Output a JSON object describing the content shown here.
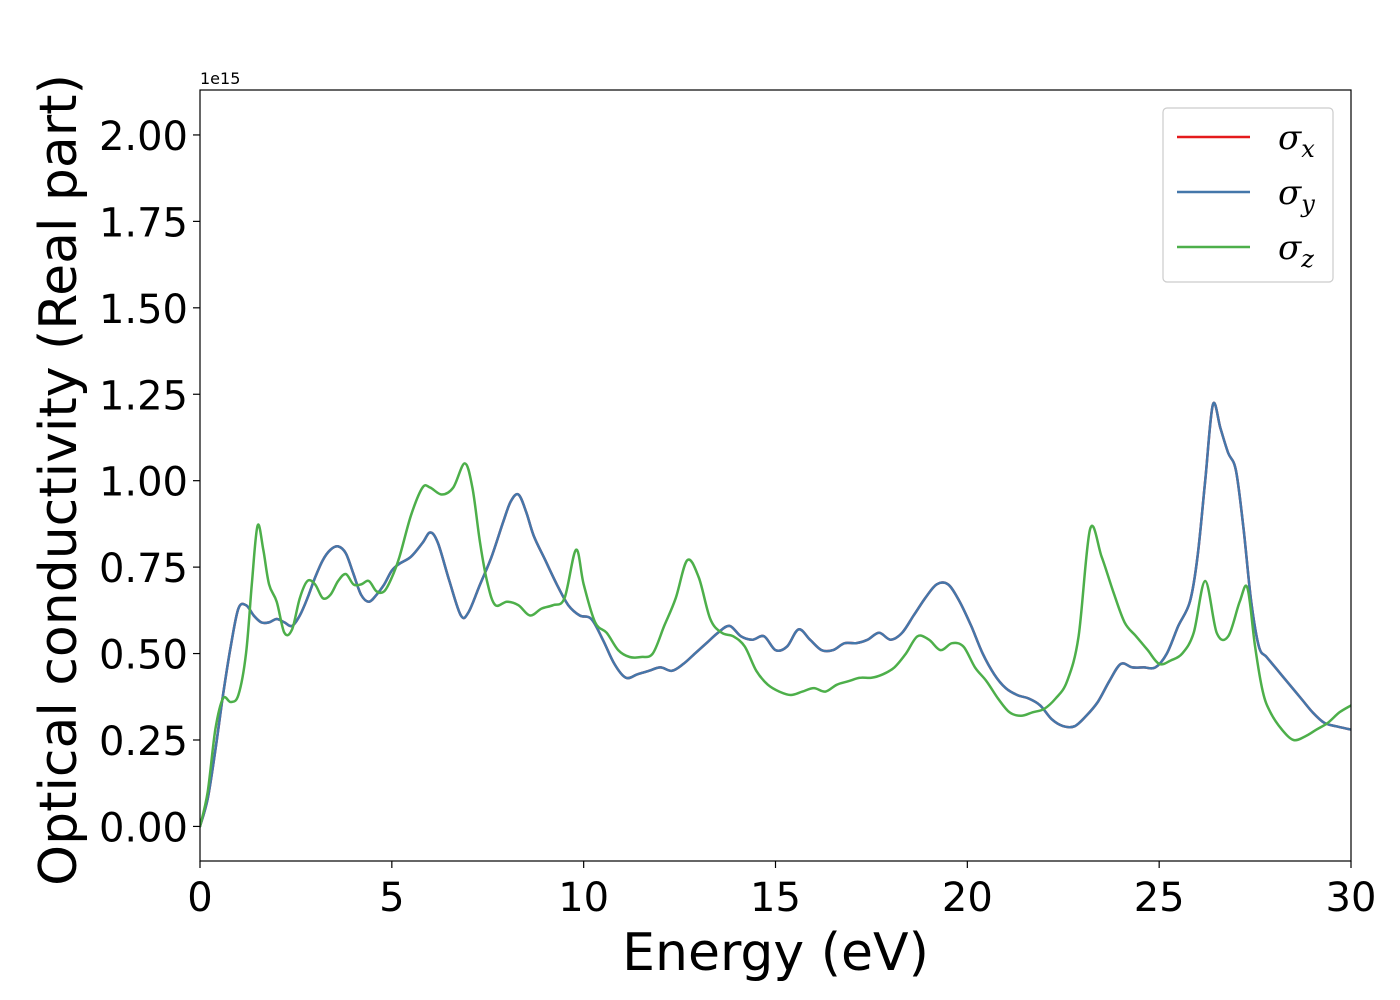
{
  "chart_data": {
    "type": "line",
    "xlabel": "Energy (eV)",
    "ylabel": "Optical conductivity (Real part)",
    "offset_text": "1e15",
    "xlim": [
      0,
      30
    ],
    "ylim": [
      -0.1,
      2.13
    ],
    "x_ticks": [
      0,
      5,
      10,
      15,
      20,
      25,
      30
    ],
    "x_tick_labels": [
      "0",
      "5",
      "10",
      "15",
      "20",
      "25",
      "30"
    ],
    "y_ticks": [
      0,
      0.25,
      0.5,
      0.75,
      1.0,
      1.25,
      1.5,
      1.75,
      2.0
    ],
    "y_tick_labels": [
      "0.00",
      "0.25",
      "0.50",
      "0.75",
      "1.00",
      "1.25",
      "1.50",
      "1.75",
      "2.00"
    ],
    "grid": false,
    "legend_position": "top-right",
    "series": [
      {
        "name": "σx",
        "symbol": "σ",
        "subscript": "x",
        "color": "#e41a1c",
        "x": [
          0,
          0.2,
          0.4,
          0.6,
          0.8,
          1.0,
          1.2,
          1.4,
          1.6,
          1.8,
          2.0,
          2.2,
          2.4,
          2.6,
          2.8,
          3.0,
          3.2,
          3.4,
          3.6,
          3.8,
          4.0,
          4.2,
          4.4,
          4.6,
          4.8,
          5.0,
          5.2,
          5.5,
          5.8,
          6.0,
          6.2,
          6.5,
          6.8,
          7.0,
          7.3,
          7.6,
          7.9,
          8.1,
          8.3,
          8.5,
          8.7,
          9.0,
          9.3,
          9.6,
          9.9,
          10.2,
          10.5,
          10.8,
          11.1,
          11.4,
          11.7,
          12.0,
          12.3,
          12.6,
          12.9,
          13.2,
          13.5,
          13.8,
          14.1,
          14.4,
          14.7,
          15.0,
          15.3,
          15.6,
          15.9,
          16.2,
          16.5,
          16.8,
          17.1,
          17.4,
          17.7,
          18.0,
          18.3,
          18.6,
          18.9,
          19.2,
          19.5,
          19.8,
          20.1,
          20.4,
          20.7,
          21.0,
          21.3,
          21.6,
          21.9,
          22.2,
          22.5,
          22.8,
          23.1,
          23.4,
          23.7,
          24.0,
          24.3,
          24.6,
          24.9,
          25.2,
          25.5,
          25.8,
          26.0,
          26.2,
          26.4,
          26.6,
          26.8,
          27.0,
          27.2,
          27.4,
          27.6,
          27.8,
          28.1,
          28.4,
          28.7,
          29.0,
          29.3,
          29.6,
          30.0
        ],
        "y": [
          0.0,
          0.08,
          0.22,
          0.38,
          0.52,
          0.63,
          0.64,
          0.61,
          0.59,
          0.59,
          0.6,
          0.59,
          0.58,
          0.61,
          0.66,
          0.72,
          0.77,
          0.8,
          0.81,
          0.79,
          0.73,
          0.67,
          0.65,
          0.67,
          0.7,
          0.74,
          0.76,
          0.78,
          0.82,
          0.85,
          0.82,
          0.71,
          0.61,
          0.62,
          0.7,
          0.78,
          0.88,
          0.94,
          0.96,
          0.91,
          0.84,
          0.77,
          0.7,
          0.64,
          0.61,
          0.6,
          0.54,
          0.47,
          0.43,
          0.44,
          0.45,
          0.46,
          0.45,
          0.47,
          0.5,
          0.53,
          0.56,
          0.58,
          0.55,
          0.54,
          0.55,
          0.51,
          0.52,
          0.57,
          0.54,
          0.51,
          0.51,
          0.53,
          0.53,
          0.54,
          0.56,
          0.54,
          0.56,
          0.61,
          0.66,
          0.7,
          0.7,
          0.65,
          0.58,
          0.5,
          0.44,
          0.4,
          0.38,
          0.37,
          0.35,
          0.31,
          0.29,
          0.29,
          0.32,
          0.36,
          0.42,
          0.47,
          0.46,
          0.46,
          0.46,
          0.5,
          0.58,
          0.65,
          0.78,
          1.0,
          1.22,
          1.15,
          1.08,
          1.03,
          0.86,
          0.65,
          0.52,
          0.49,
          0.45,
          0.41,
          0.37,
          0.33,
          0.3,
          0.29,
          0.28
        ]
      },
      {
        "name": "σy",
        "symbol": "σ",
        "subscript": "y",
        "color": "#4477aa",
        "x": [
          0,
          0.2,
          0.4,
          0.6,
          0.8,
          1.0,
          1.2,
          1.4,
          1.6,
          1.8,
          2.0,
          2.2,
          2.4,
          2.6,
          2.8,
          3.0,
          3.2,
          3.4,
          3.6,
          3.8,
          4.0,
          4.2,
          4.4,
          4.6,
          4.8,
          5.0,
          5.2,
          5.5,
          5.8,
          6.0,
          6.2,
          6.5,
          6.8,
          7.0,
          7.3,
          7.6,
          7.9,
          8.1,
          8.3,
          8.5,
          8.7,
          9.0,
          9.3,
          9.6,
          9.9,
          10.2,
          10.5,
          10.8,
          11.1,
          11.4,
          11.7,
          12.0,
          12.3,
          12.6,
          12.9,
          13.2,
          13.5,
          13.8,
          14.1,
          14.4,
          14.7,
          15.0,
          15.3,
          15.6,
          15.9,
          16.2,
          16.5,
          16.8,
          17.1,
          17.4,
          17.7,
          18.0,
          18.3,
          18.6,
          18.9,
          19.2,
          19.5,
          19.8,
          20.1,
          20.4,
          20.7,
          21.0,
          21.3,
          21.6,
          21.9,
          22.2,
          22.5,
          22.8,
          23.1,
          23.4,
          23.7,
          24.0,
          24.3,
          24.6,
          24.9,
          25.2,
          25.5,
          25.8,
          26.0,
          26.2,
          26.4,
          26.6,
          26.8,
          27.0,
          27.2,
          27.4,
          27.6,
          27.8,
          28.1,
          28.4,
          28.7,
          29.0,
          29.3,
          29.6,
          30.0
        ],
        "y": [
          0.0,
          0.08,
          0.22,
          0.38,
          0.52,
          0.63,
          0.64,
          0.61,
          0.59,
          0.59,
          0.6,
          0.59,
          0.58,
          0.61,
          0.66,
          0.72,
          0.77,
          0.8,
          0.81,
          0.79,
          0.73,
          0.67,
          0.65,
          0.67,
          0.7,
          0.74,
          0.76,
          0.78,
          0.82,
          0.85,
          0.82,
          0.71,
          0.61,
          0.62,
          0.7,
          0.78,
          0.88,
          0.94,
          0.96,
          0.91,
          0.84,
          0.77,
          0.7,
          0.64,
          0.61,
          0.6,
          0.54,
          0.47,
          0.43,
          0.44,
          0.45,
          0.46,
          0.45,
          0.47,
          0.5,
          0.53,
          0.56,
          0.58,
          0.55,
          0.54,
          0.55,
          0.51,
          0.52,
          0.57,
          0.54,
          0.51,
          0.51,
          0.53,
          0.53,
          0.54,
          0.56,
          0.54,
          0.56,
          0.61,
          0.66,
          0.7,
          0.7,
          0.65,
          0.58,
          0.5,
          0.44,
          0.4,
          0.38,
          0.37,
          0.35,
          0.31,
          0.29,
          0.29,
          0.32,
          0.36,
          0.42,
          0.47,
          0.46,
          0.46,
          0.46,
          0.5,
          0.58,
          0.65,
          0.78,
          1.0,
          1.22,
          1.15,
          1.08,
          1.03,
          0.86,
          0.65,
          0.52,
          0.49,
          0.45,
          0.41,
          0.37,
          0.33,
          0.3,
          0.29,
          0.28
        ]
      },
      {
        "name": "σz",
        "symbol": "σ",
        "subscript": "z",
        "color": "#4daf4a",
        "x": [
          0,
          0.2,
          0.4,
          0.6,
          0.8,
          1.0,
          1.2,
          1.35,
          1.5,
          1.65,
          1.8,
          2.0,
          2.2,
          2.4,
          2.6,
          2.8,
          3.0,
          3.2,
          3.4,
          3.6,
          3.8,
          4.0,
          4.2,
          4.4,
          4.6,
          4.8,
          5.0,
          5.2,
          5.5,
          5.8,
          6.0,
          6.3,
          6.6,
          6.9,
          7.1,
          7.3,
          7.5,
          7.7,
          8.0,
          8.3,
          8.6,
          8.9,
          9.2,
          9.5,
          9.8,
          10.0,
          10.3,
          10.6,
          10.9,
          11.2,
          11.5,
          11.8,
          12.1,
          12.4,
          12.7,
          13.0,
          13.3,
          13.6,
          13.9,
          14.2,
          14.5,
          14.8,
          15.1,
          15.4,
          15.7,
          16.0,
          16.3,
          16.6,
          16.9,
          17.2,
          17.5,
          17.8,
          18.1,
          18.4,
          18.7,
          19.0,
          19.3,
          19.6,
          19.9,
          20.2,
          20.5,
          20.8,
          21.1,
          21.4,
          21.7,
          22.0,
          22.3,
          22.6,
          22.9,
          23.2,
          23.5,
          23.8,
          24.1,
          24.4,
          24.7,
          25.0,
          25.3,
          25.6,
          25.9,
          26.2,
          26.5,
          26.8,
          27.1,
          27.3,
          27.5,
          27.7,
          27.9,
          28.2,
          28.5,
          28.8,
          29.1,
          29.4,
          29.7,
          30.0
        ],
        "y": [
          0.0,
          0.1,
          0.28,
          0.37,
          0.36,
          0.38,
          0.5,
          0.7,
          0.87,
          0.8,
          0.7,
          0.65,
          0.56,
          0.57,
          0.66,
          0.71,
          0.7,
          0.66,
          0.67,
          0.71,
          0.73,
          0.7,
          0.7,
          0.71,
          0.68,
          0.68,
          0.72,
          0.78,
          0.9,
          0.98,
          0.98,
          0.96,
          0.98,
          1.05,
          0.98,
          0.82,
          0.7,
          0.64,
          0.65,
          0.64,
          0.61,
          0.63,
          0.64,
          0.66,
          0.8,
          0.7,
          0.59,
          0.56,
          0.51,
          0.49,
          0.49,
          0.5,
          0.58,
          0.66,
          0.77,
          0.72,
          0.6,
          0.56,
          0.55,
          0.52,
          0.45,
          0.41,
          0.39,
          0.38,
          0.39,
          0.4,
          0.39,
          0.41,
          0.42,
          0.43,
          0.43,
          0.44,
          0.46,
          0.5,
          0.55,
          0.54,
          0.51,
          0.53,
          0.52,
          0.46,
          0.42,
          0.37,
          0.33,
          0.32,
          0.33,
          0.34,
          0.37,
          0.42,
          0.55,
          0.86,
          0.78,
          0.68,
          0.59,
          0.55,
          0.51,
          0.47,
          0.48,
          0.5,
          0.56,
          0.71,
          0.56,
          0.55,
          0.65,
          0.69,
          0.52,
          0.39,
          0.33,
          0.28,
          0.25,
          0.26,
          0.28,
          0.3,
          0.33,
          0.35
        ]
      }
    ]
  }
}
